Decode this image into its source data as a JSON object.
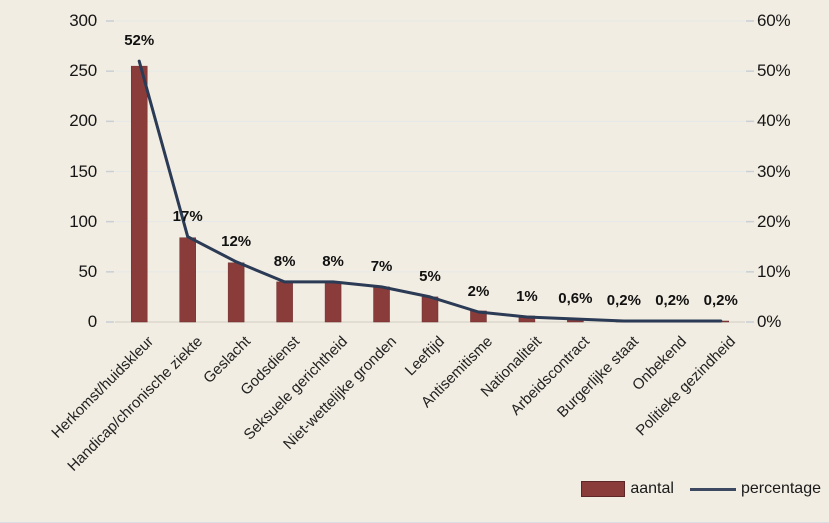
{
  "chart_data": {
    "type": "bar",
    "subtype": "combo-bar-line",
    "categories": [
      "Herkomst/huidskleur",
      "Handicap/chronische ziekte",
      "Geslacht",
      "Godsdienst",
      "Seksuele gerichtheid",
      "Niet-wettelijke gronden",
      "Leeftijd",
      "Antisemitisme",
      "Nationaliteit",
      "Arbeidscontract",
      "Burgerlijke staat",
      "Onbekend",
      "Politieke gezindheid"
    ],
    "series": [
      {
        "name": "aantal",
        "type": "bar",
        "axis": "left",
        "values": [
          255,
          84,
          59,
          40,
          40,
          35,
          25,
          11,
          6,
          3,
          1,
          1,
          1
        ]
      },
      {
        "name": "percentage",
        "type": "line",
        "axis": "right",
        "values": [
          52,
          17,
          12,
          8,
          8,
          7,
          5,
          2,
          1,
          0.6,
          0.2,
          0.2,
          0.2
        ],
        "labels": [
          "52%",
          "17%",
          "12%",
          "8%",
          "8%",
          "7%",
          "5%",
          "2%",
          "1%",
          "0,6%",
          "0,2%",
          "0,2%",
          "0,2%"
        ]
      }
    ],
    "left_axis": {
      "min": 0,
      "max": 300,
      "step": 50,
      "ticks": [
        "0",
        "50",
        "100",
        "150",
        "200",
        "250",
        "300"
      ]
    },
    "right_axis": {
      "min": 0,
      "max": 60,
      "step": 10,
      "ticks": [
        "0%",
        "10%",
        "20%",
        "30%",
        "40%",
        "50%",
        "60%"
      ]
    },
    "grid": true,
    "legend": [
      "aantal",
      "percentage"
    ],
    "legend_position": "bottom-right",
    "title": "",
    "xlabel": "",
    "ylabel": ""
  },
  "colors": {
    "background": "#f2ede2",
    "bar": "#8a3c3a",
    "bar_border": "#6d2e2c",
    "line": "#2b3a55",
    "grid": "#e5e8e8",
    "axis_line": "#dbd8cd",
    "tick_mark": "#c9cfd4",
    "text": "#161616"
  }
}
